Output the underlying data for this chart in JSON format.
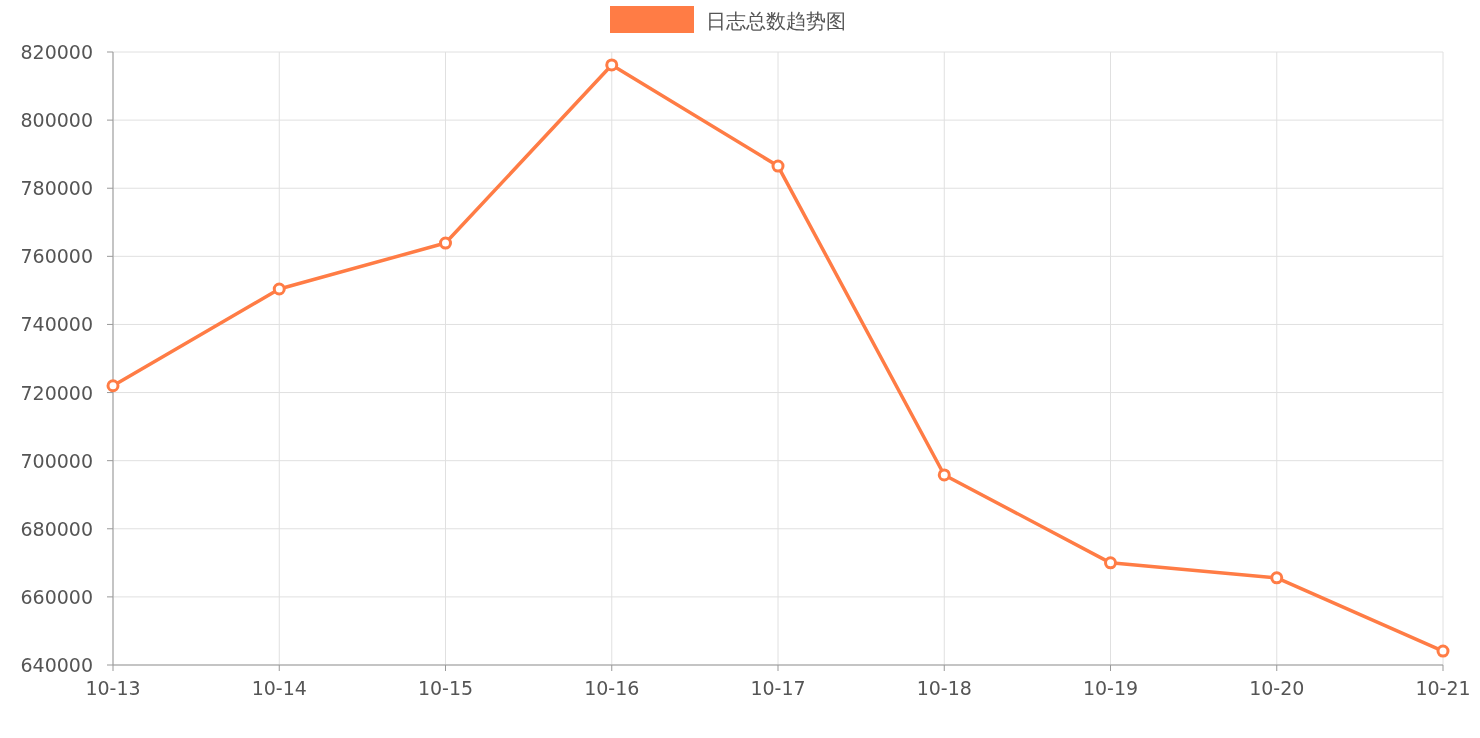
{
  "chart_data": {
    "type": "line",
    "categories": [
      "10-13",
      "10-14",
      "10-15",
      "10-16",
      "10-17",
      "10-18",
      "10-19",
      "10-20",
      "10-21"
    ],
    "series": [
      {
        "name": "日志总数趋势图",
        "color": "#ff7c45",
        "values": [
          722000,
          750400,
          763900,
          816200,
          786500,
          695800,
          670000,
          665600,
          644100
        ]
      }
    ],
    "ylim": [
      640000,
      820000
    ],
    "yticks": [
      640000,
      660000,
      680000,
      700000,
      720000,
      740000,
      760000,
      780000,
      800000,
      820000
    ],
    "grid": true,
    "legend": "top",
    "marker": "circle",
    "line_style": "solid"
  }
}
